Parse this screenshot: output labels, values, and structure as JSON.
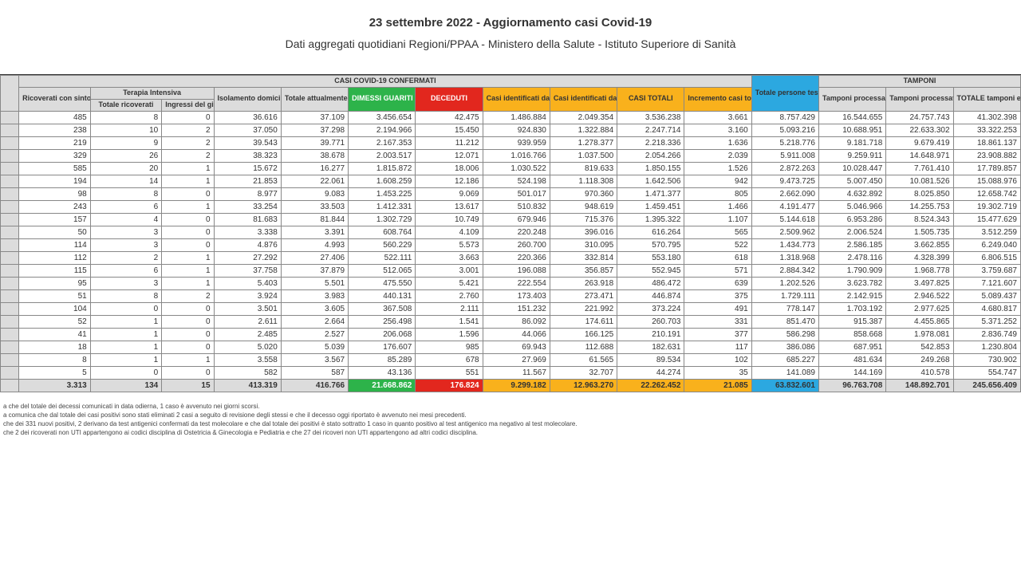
{
  "header": {
    "title_line1": "23 settembre 2022 - Aggiornamento casi Covid-19",
    "title_line2": "Dati aggregati quotidiani Regioni/PPAA - Ministero della Salute - Istituto Superiore di Sanità"
  },
  "table": {
    "group_headers": {
      "confermati": "CASI COVID-19 CONFERMATI",
      "terapia": "Terapia Intensiva",
      "tamponi": "TAMPONI"
    },
    "columns": [
      {
        "key": "ric_sint",
        "label": "Ricoverati con sintomi",
        "class": "grp-grey",
        "width": 85
      },
      {
        "key": "ti_tot",
        "label": "Totale ricoverati",
        "class": "grp-grey",
        "width": 85
      },
      {
        "key": "ti_ing",
        "label": "Ingressi del giorno",
        "class": "grp-grey",
        "width": 62
      },
      {
        "key": "iso_dom",
        "label": "Isolamento domiciliare",
        "class": "grp-grey",
        "width": 80
      },
      {
        "key": "tot_pos",
        "label": "Totale attualmente positivi",
        "class": "grp-grey",
        "width": 80
      },
      {
        "key": "dimessi",
        "label": "DIMESSI GUARITI",
        "class": "grp-green",
        "width": 80
      },
      {
        "key": "deceduti",
        "label": "DECEDUTI",
        "class": "grp-red",
        "width": 80
      },
      {
        "key": "casi_mol",
        "label": "Casi identificati da test molecolare",
        "class": "grp-orange",
        "width": 80
      },
      {
        "key": "casi_ant",
        "label": "Casi identificati da test antigenico rapido",
        "class": "grp-orange",
        "width": 80
      },
      {
        "key": "casi_tot",
        "label": "CASI TOTALI",
        "class": "grp-orange",
        "width": 80
      },
      {
        "key": "incr",
        "label": "Incremento casi totali (rispetto al giorno precedente)",
        "class": "grp-orange",
        "width": 80
      },
      {
        "key": "pers_test",
        "label": "Totale persone testate",
        "class": "grp-blue",
        "width": 80
      },
      {
        "key": "tamp_mol",
        "label": "Tamponi processati con test molecolare",
        "class": "grp-grey",
        "width": 80
      },
      {
        "key": "tamp_ant",
        "label": "Tamponi processati con test antigenico rapido",
        "class": "grp-grey",
        "width": 80
      },
      {
        "key": "tamp_tot",
        "label": "TOTALE tamponi effettuati",
        "class": "grp-grey",
        "width": 80
      }
    ],
    "rows": [
      [
        "485",
        "8",
        "0",
        "36.616",
        "37.109",
        "3.456.654",
        "42.475",
        "1.486.884",
        "2.049.354",
        "3.536.238",
        "3.661",
        "8.757.429",
        "16.544.655",
        "24.757.743",
        "41.302.398"
      ],
      [
        "238",
        "10",
        "2",
        "37.050",
        "37.298",
        "2.194.966",
        "15.450",
        "924.830",
        "1.322.884",
        "2.247.714",
        "3.160",
        "5.093.216",
        "10.688.951",
        "22.633.302",
        "33.322.253"
      ],
      [
        "219",
        "9",
        "2",
        "39.543",
        "39.771",
        "2.167.353",
        "11.212",
        "939.959",
        "1.278.377",
        "2.218.336",
        "1.636",
        "5.218.776",
        "9.181.718",
        "9.679.419",
        "18.861.137"
      ],
      [
        "329",
        "26",
        "2",
        "38.323",
        "38.678",
        "2.003.517",
        "12.071",
        "1.016.766",
        "1.037.500",
        "2.054.266",
        "2.039",
        "5.911.008",
        "9.259.911",
        "14.648.971",
        "23.908.882"
      ],
      [
        "585",
        "20",
        "1",
        "15.672",
        "16.277",
        "1.815.872",
        "18.006",
        "1.030.522",
        "819.633",
        "1.850.155",
        "1.526",
        "2.872.263",
        "10.028.447",
        "7.761.410",
        "17.789.857"
      ],
      [
        "194",
        "14",
        "1",
        "21.853",
        "22.061",
        "1.608.259",
        "12.186",
        "524.198",
        "1.118.308",
        "1.642.506",
        "942",
        "9.473.725",
        "5.007.450",
        "10.081.526",
        "15.088.976"
      ],
      [
        "98",
        "8",
        "0",
        "8.977",
        "9.083",
        "1.453.225",
        "9.069",
        "501.017",
        "970.360",
        "1.471.377",
        "805",
        "2.662.090",
        "4.632.892",
        "8.025.850",
        "12.658.742"
      ],
      [
        "243",
        "6",
        "1",
        "33.254",
        "33.503",
        "1.412.331",
        "13.617",
        "510.832",
        "948.619",
        "1.459.451",
        "1.466",
        "4.191.477",
        "5.046.966",
        "14.255.753",
        "19.302.719"
      ],
      [
        "157",
        "4",
        "0",
        "81.683",
        "81.844",
        "1.302.729",
        "10.749",
        "679.946",
        "715.376",
        "1.395.322",
        "1.107",
        "5.144.618",
        "6.953.286",
        "8.524.343",
        "15.477.629"
      ],
      [
        "50",
        "3",
        "0",
        "3.338",
        "3.391",
        "608.764",
        "4.109",
        "220.248",
        "396.016",
        "616.264",
        "565",
        "2.509.962",
        "2.006.524",
        "1.505.735",
        "3.512.259"
      ],
      [
        "114",
        "3",
        "0",
        "4.876",
        "4.993",
        "560.229",
        "5.573",
        "260.700",
        "310.095",
        "570.795",
        "522",
        "1.434.773",
        "2.586.185",
        "3.662.855",
        "6.249.040"
      ],
      [
        "112",
        "2",
        "1",
        "27.292",
        "27.406",
        "522.111",
        "3.663",
        "220.366",
        "332.814",
        "553.180",
        "618",
        "1.318.968",
        "2.478.116",
        "4.328.399",
        "6.806.515"
      ],
      [
        "115",
        "6",
        "1",
        "37.758",
        "37.879",
        "512.065",
        "3.001",
        "196.088",
        "356.857",
        "552.945",
        "571",
        "2.884.342",
        "1.790.909",
        "1.968.778",
        "3.759.687"
      ],
      [
        "95",
        "3",
        "1",
        "5.403",
        "5.501",
        "475.550",
        "5.421",
        "222.554",
        "263.918",
        "486.472",
        "639",
        "1.202.526",
        "3.623.782",
        "3.497.825",
        "7.121.607"
      ],
      [
        "51",
        "8",
        "2",
        "3.924",
        "3.983",
        "440.131",
        "2.760",
        "173.403",
        "273.471",
        "446.874",
        "375",
        "1.729.111",
        "2.142.915",
        "2.946.522",
        "5.089.437"
      ],
      [
        "104",
        "0",
        "0",
        "3.501",
        "3.605",
        "367.508",
        "2.111",
        "151.232",
        "221.992",
        "373.224",
        "491",
        "778.147",
        "1.703.192",
        "2.977.625",
        "4.680.817"
      ],
      [
        "52",
        "1",
        "0",
        "2.611",
        "2.664",
        "256.498",
        "1.541",
        "86.092",
        "174.611",
        "260.703",
        "331",
        "851.470",
        "915.387",
        "4.455.865",
        "5.371.252"
      ],
      [
        "41",
        "1",
        "0",
        "2.485",
        "2.527",
        "206.068",
        "1.596",
        "44.066",
        "166.125",
        "210.191",
        "377",
        "586.298",
        "858.668",
        "1.978.081",
        "2.836.749"
      ],
      [
        "18",
        "1",
        "0",
        "5.020",
        "5.039",
        "176.607",
        "985",
        "69.943",
        "112.688",
        "182.631",
        "117",
        "386.086",
        "687.951",
        "542.853",
        "1.230.804"
      ],
      [
        "8",
        "1",
        "1",
        "3.558",
        "3.567",
        "85.289",
        "678",
        "27.969",
        "61.565",
        "89.534",
        "102",
        "685.227",
        "481.634",
        "249.268",
        "730.902"
      ],
      [
        "5",
        "0",
        "0",
        "582",
        "587",
        "43.136",
        "551",
        "11.567",
        "32.707",
        "44.274",
        "35",
        "141.089",
        "144.169",
        "410.578",
        "554.747"
      ]
    ],
    "totals": [
      "3.313",
      "134",
      "15",
      "413.319",
      "416.766",
      "21.668.862",
      "176.824",
      "9.299.182",
      "12.963.270",
      "22.262.452",
      "21.085",
      "63.832.601",
      "96.763.708",
      "148.892.701",
      "245.656.409"
    ],
    "total_cell_classes": [
      "grp-grey",
      "grp-grey",
      "grp-grey",
      "grp-grey",
      "grp-grey",
      "grp-green",
      "grp-red",
      "grp-orange",
      "grp-orange",
      "grp-orange",
      "grp-orange",
      "grp-blue",
      "grp-grey",
      "grp-grey",
      "grp-grey"
    ]
  },
  "footnotes": [
    "a che del totale dei decessi comunicati in data odierna, 1 caso è avvenuto nei giorni scorsi.",
    "a comunica che dal totale dei casi positivi sono stati eliminati 2 casi a seguito di revisione degli stessi e che il decesso oggi riportato è avvenuto nei mesi precedenti.",
    "che dei 331 nuovi positivi, 2 derivano da test antigenici confermati da test molecolare e che dal totale dei positivi è stato sottratto 1 caso in quanto positivo al test antigenico ma negativo al test molecolare.",
    "che 2 dei ricoverati non UTI appartengono ai codici disciplina di Ostetricia & Ginecologia e Pediatria e che 27 dei ricoveri non UTI appartengono ad altri codici disciplina."
  ]
}
